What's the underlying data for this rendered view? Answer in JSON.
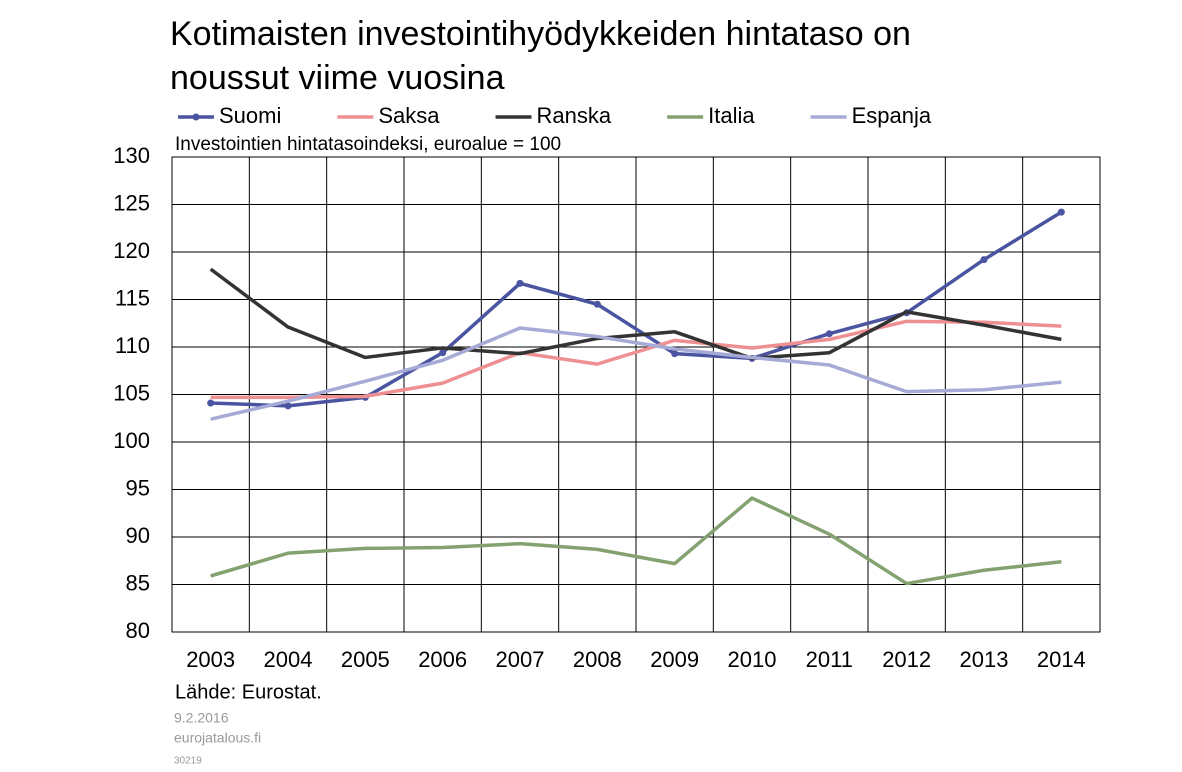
{
  "chart_data": {
    "type": "line",
    "title": "Kotimaisten investointihyödykkeiden hintataso on noussut viime vuosina",
    "subtitle": "Investointien hintatasoindeksi, euroalue = 100",
    "source": "Lähde: Eurostat.",
    "date": "9.2.2016",
    "site": "eurojatalous.fi",
    "code": "30219",
    "categories": [
      "2003",
      "2004",
      "2005",
      "2006",
      "2007",
      "2008",
      "2009",
      "2010",
      "2011",
      "2012",
      "2013",
      "2014"
    ],
    "series": [
      {
        "name": "Suomi",
        "color": "#4a54a0",
        "markers": true,
        "values": [
          104.1,
          103.8,
          104.7,
          109.4,
          116.7,
          114.5,
          109.3,
          108.8,
          111.4,
          113.6,
          119.2,
          124.2
        ]
      },
      {
        "name": "Saksa",
        "color": "#ee8f92",
        "markers": false,
        "values": [
          104.7,
          104.7,
          104.8,
          106.2,
          109.4,
          108.2,
          110.7,
          109.9,
          110.8,
          112.7,
          112.6,
          112.2
        ]
      },
      {
        "name": "Ranska",
        "color": "#333333",
        "markers": false,
        "values": [
          118.2,
          112.1,
          108.9,
          109.9,
          109.3,
          110.9,
          111.6,
          108.8,
          109.4,
          113.7,
          112.3,
          110.8
        ]
      },
      {
        "name": "Italia",
        "color": "#84a270",
        "markers": false,
        "values": [
          85.9,
          88.3,
          88.8,
          88.9,
          89.3,
          88.7,
          87.2,
          94.1,
          90.3,
          85.1,
          86.5,
          87.4
        ]
      },
      {
        "name": "Espanja",
        "color": "#a6aad6",
        "markers": false,
        "values": [
          102.4,
          104.3,
          106.4,
          108.6,
          112.0,
          111.1,
          109.8,
          108.9,
          108.1,
          105.3,
          105.5,
          106.3
        ]
      }
    ],
    "ylim": [
      80,
      130
    ],
    "yticks": [
      80,
      85,
      90,
      95,
      100,
      105,
      110,
      115,
      120,
      125,
      130
    ],
    "grid": true
  }
}
